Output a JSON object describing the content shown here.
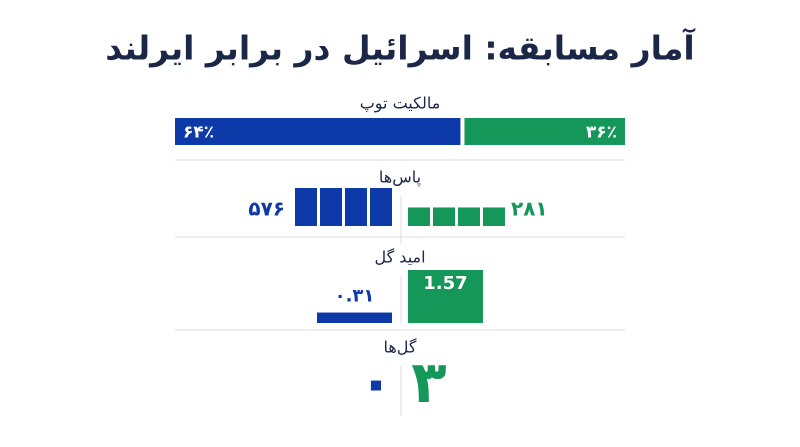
{
  "chart_data": {
    "type": "comparison",
    "title": "آمار مسابقه: اسرائیل در برابر ایرلند",
    "colors": [
      "#0e3aa9",
      "#16975a"
    ],
    "stats": [
      {
        "label": "مالکیت توپ",
        "style": "bar",
        "values": [
          64,
          36
        ],
        "value_labels": [
          "۶۴٪",
          "۳۶٪"
        ]
      },
      {
        "label": "پاس‌ها",
        "style": "blocks",
        "values": [
          576,
          281
        ],
        "value_labels": [
          "۵۷۶",
          "۲۸۱"
        ]
      },
      {
        "label": "امید گل",
        "style": "box",
        "values": [
          0.31,
          1.57
        ],
        "value_labels": [
          "۰.۳۱",
          "1.57"
        ]
      },
      {
        "label": "گل‌ها",
        "style": "number",
        "values": [
          0,
          3
        ],
        "value_labels": [
          "۰",
          "۳"
        ]
      }
    ]
  }
}
